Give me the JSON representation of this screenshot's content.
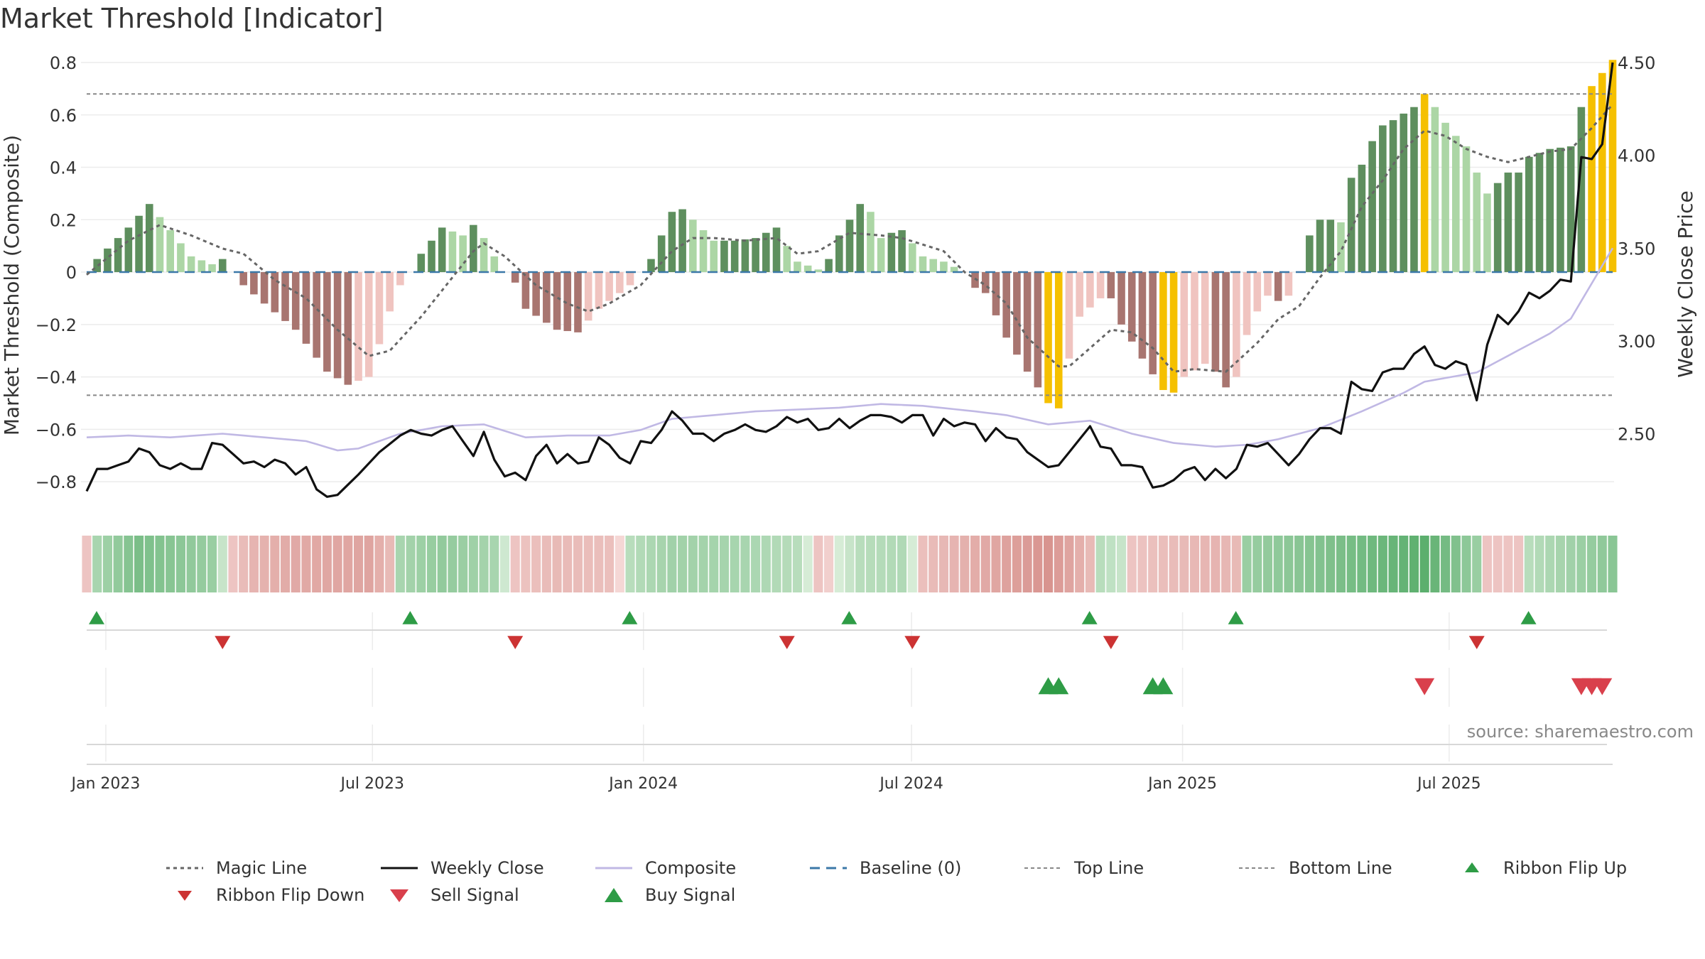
{
  "title": "Market Threshold [Indicator]",
  "source": "source: sharemaestro.com",
  "colors": {
    "pos_dark": "#5e8f5e",
    "pos_light": "#acd6a5",
    "neg_dark": "#a87570",
    "neg_light": "#f0c4c0",
    "extreme": "#f5c000",
    "close": "#111111",
    "composite": "#c0b8e4",
    "magic": "#666666",
    "baseline": "#3b78a8",
    "threshold": "#888888",
    "buy": "#2e9c46",
    "sell": "#d9404c"
  },
  "chart_data": {
    "type": "bar+line",
    "ylabel_left": "Market Threshold (Composite)",
    "ylabel_right": "Weekly Close Price",
    "ylim_left": [
      -0.9,
      0.8
    ],
    "yticks_left": [
      "0.8",
      "0.6",
      "0.4",
      "0.2",
      "0",
      "−0.2",
      "−0.4",
      "−0.6",
      "−0.8"
    ],
    "ytick_values_left": [
      0.8,
      0.6,
      0.4,
      0.2,
      0,
      -0.2,
      -0.4,
      -0.6,
      -0.8
    ],
    "ylim_right": [
      2.1,
      4.5
    ],
    "yticks_right": [
      "4.50",
      "4.00",
      "3.50",
      "3.00",
      "2.50"
    ],
    "ytick_values_right": [
      4.5,
      4.0,
      3.5,
      3.0,
      2.5
    ],
    "x_start": "2022-12-19",
    "x_end": "2025-10-20",
    "xticks": [
      "Jan 2023",
      "Jul 2023",
      "Jan 2024",
      "Jul 2024",
      "Jan 2025",
      "Jul 2025"
    ],
    "xtick_dates": [
      "2023-01-01",
      "2023-07-01",
      "2024-01-01",
      "2024-07-01",
      "2025-01-01",
      "2025-07-01"
    ],
    "top_line": 0.68,
    "bottom_line": -0.47,
    "bar_anchors": [
      [
        0,
        0.0
      ],
      [
        1,
        0.05
      ],
      [
        2,
        0.09
      ],
      [
        4,
        0.17
      ],
      [
        6,
        0.26
      ],
      [
        8,
        0.16
      ],
      [
        10,
        0.06
      ],
      [
        12,
        0.03
      ],
      [
        13,
        0.05
      ],
      [
        15,
        -0.05
      ],
      [
        17,
        -0.12
      ],
      [
        20,
        -0.22
      ],
      [
        23,
        -0.38
      ],
      [
        25,
        -0.43
      ],
      [
        27,
        -0.4
      ],
      [
        29,
        -0.15
      ],
      [
        30,
        -0.05
      ],
      [
        31,
        0.0
      ],
      [
        32,
        0.07
      ],
      [
        34,
        0.17
      ],
      [
        36,
        0.14
      ],
      [
        37,
        0.18
      ],
      [
        38,
        0.13
      ],
      [
        39,
        0.06
      ],
      [
        40,
        0.0
      ],
      [
        41,
        -0.04
      ],
      [
        42,
        -0.14
      ],
      [
        45,
        -0.22
      ],
      [
        47,
        -0.23
      ],
      [
        49,
        -0.14
      ],
      [
        52,
        -0.05
      ],
      [
        53,
        0.0
      ],
      [
        54,
        0.05
      ],
      [
        56,
        0.23
      ],
      [
        57,
        0.24
      ],
      [
        58,
        0.2
      ],
      [
        60,
        0.12
      ],
      [
        62,
        0.12
      ],
      [
        64,
        0.13
      ],
      [
        66,
        0.17
      ],
      [
        67,
        0.1
      ],
      [
        68,
        0.04
      ],
      [
        70,
        0.01
      ],
      [
        71,
        0.05
      ],
      [
        72,
        0.14
      ],
      [
        74,
        0.26
      ],
      [
        75,
        0.23
      ],
      [
        76,
        0.13
      ],
      [
        77,
        0.15
      ],
      [
        78,
        0.16
      ],
      [
        80,
        0.06
      ],
      [
        82,
        0.04
      ],
      [
        83,
        0.02
      ],
      [
        84,
        0.0
      ],
      [
        85,
        -0.06
      ],
      [
        86,
        -0.08
      ],
      [
        88,
        -0.25
      ],
      [
        90,
        -0.38
      ],
      [
        91,
        -0.44
      ],
      [
        92,
        -0.5
      ],
      [
        93,
        -0.52
      ],
      [
        94,
        -0.33
      ],
      [
        95,
        -0.17
      ],
      [
        97,
        -0.1
      ],
      [
        98,
        -0.1
      ],
      [
        99,
        -0.2
      ],
      [
        101,
        -0.33
      ],
      [
        103,
        -0.45
      ],
      [
        104,
        -0.46
      ],
      [
        105,
        -0.4
      ],
      [
        107,
        -0.35
      ],
      [
        108,
        -0.38
      ],
      [
        109,
        -0.44
      ],
      [
        110,
        -0.4
      ],
      [
        111,
        -0.24
      ],
      [
        112,
        -0.15
      ],
      [
        113,
        -0.09
      ],
      [
        114,
        -0.11
      ],
      [
        115,
        -0.09
      ],
      [
        116,
        0.0
      ],
      [
        117,
        0.14
      ],
      [
        118,
        0.2
      ],
      [
        119,
        0.2
      ],
      [
        120,
        0.19
      ],
      [
        121,
        0.36
      ],
      [
        122,
        0.41
      ],
      [
        123,
        0.5
      ],
      [
        124,
        0.56
      ],
      [
        125,
        0.58
      ],
      [
        127,
        0.63
      ],
      [
        128,
        0.68
      ],
      [
        129,
        0.63
      ],
      [
        130,
        0.57
      ],
      [
        131,
        0.52
      ],
      [
        132,
        0.48
      ],
      [
        133,
        0.38
      ],
      [
        134,
        0.3
      ],
      [
        135,
        0.34
      ],
      [
        136,
        0.38
      ],
      [
        137,
        0.38
      ],
      [
        138,
        0.44
      ],
      [
        140,
        0.47
      ],
      [
        142,
        0.48
      ],
      [
        143,
        0.63
      ],
      [
        144,
        0.71
      ],
      [
        145,
        0.76
      ],
      [
        146,
        0.81
      ]
    ],
    "extreme_bars": [
      92,
      93,
      103,
      104,
      128,
      144,
      145,
      146
    ],
    "close_anchors": [
      [
        0,
        2.19
      ],
      [
        1,
        2.31
      ],
      [
        2,
        2.31
      ],
      [
        4,
        2.35
      ],
      [
        5,
        2.42
      ],
      [
        6,
        2.4
      ],
      [
        7,
        2.33
      ],
      [
        8,
        2.31
      ],
      [
        9,
        2.34
      ],
      [
        10,
        2.31
      ],
      [
        11,
        2.31
      ],
      [
        12,
        2.45
      ],
      [
        13,
        2.44
      ],
      [
        15,
        2.34
      ],
      [
        16,
        2.35
      ],
      [
        17,
        2.32
      ],
      [
        18,
        2.36
      ],
      [
        19,
        2.34
      ],
      [
        20,
        2.28
      ],
      [
        21,
        2.32
      ],
      [
        22,
        2.2
      ],
      [
        23,
        2.16
      ],
      [
        24,
        2.17
      ],
      [
        26,
        2.28
      ],
      [
        28,
        2.4
      ],
      [
        30,
        2.49
      ],
      [
        31,
        2.52
      ],
      [
        32,
        2.5
      ],
      [
        33,
        2.49
      ],
      [
        34,
        2.52
      ],
      [
        35,
        2.54
      ],
      [
        36,
        2.46
      ],
      [
        37,
        2.38
      ],
      [
        38,
        2.51
      ],
      [
        39,
        2.36
      ],
      [
        40,
        2.27
      ],
      [
        41,
        2.29
      ],
      [
        42,
        2.25
      ],
      [
        43,
        2.38
      ],
      [
        44,
        2.44
      ],
      [
        45,
        2.34
      ],
      [
        46,
        2.39
      ],
      [
        47,
        2.34
      ],
      [
        48,
        2.35
      ],
      [
        49,
        2.48
      ],
      [
        50,
        2.44
      ],
      [
        51,
        2.37
      ],
      [
        52,
        2.34
      ],
      [
        53,
        2.46
      ],
      [
        54,
        2.45
      ],
      [
        55,
        2.52
      ],
      [
        56,
        2.62
      ],
      [
        57,
        2.57
      ],
      [
        58,
        2.5
      ],
      [
        59,
        2.5
      ],
      [
        60,
        2.46
      ],
      [
        61,
        2.5
      ],
      [
        62,
        2.52
      ],
      [
        63,
        2.55
      ],
      [
        64,
        2.52
      ],
      [
        65,
        2.51
      ],
      [
        66,
        2.54
      ],
      [
        67,
        2.59
      ],
      [
        68,
        2.56
      ],
      [
        69,
        2.58
      ],
      [
        70,
        2.52
      ],
      [
        71,
        2.53
      ],
      [
        72,
        2.58
      ],
      [
        73,
        2.53
      ],
      [
        74,
        2.57
      ],
      [
        75,
        2.6
      ],
      [
        76,
        2.6
      ],
      [
        77,
        2.59
      ],
      [
        78,
        2.56
      ],
      [
        79,
        2.6
      ],
      [
        80,
        2.6
      ],
      [
        81,
        2.49
      ],
      [
        82,
        2.58
      ],
      [
        83,
        2.54
      ],
      [
        84,
        2.56
      ],
      [
        85,
        2.55
      ],
      [
        86,
        2.46
      ],
      [
        87,
        2.53
      ],
      [
        88,
        2.48
      ],
      [
        89,
        2.47
      ],
      [
        90,
        2.4
      ],
      [
        91,
        2.36
      ],
      [
        92,
        2.32
      ],
      [
        93,
        2.33
      ],
      [
        94,
        2.4
      ],
      [
        95,
        2.47
      ],
      [
        96,
        2.54
      ],
      [
        97,
        2.43
      ],
      [
        98,
        2.42
      ],
      [
        99,
        2.33
      ],
      [
        100,
        2.33
      ],
      [
        101,
        2.32
      ],
      [
        102,
        2.21
      ],
      [
        103,
        2.22
      ],
      [
        104,
        2.25
      ],
      [
        105,
        2.3
      ],
      [
        106,
        2.32
      ],
      [
        107,
        2.25
      ],
      [
        108,
        2.31
      ],
      [
        109,
        2.26
      ],
      [
        110,
        2.31
      ],
      [
        111,
        2.44
      ],
      [
        112,
        2.43
      ],
      [
        113,
        2.45
      ],
      [
        114,
        2.39
      ],
      [
        115,
        2.33
      ],
      [
        116,
        2.39
      ],
      [
        117,
        2.47
      ],
      [
        118,
        2.53
      ],
      [
        119,
        2.53
      ],
      [
        120,
        2.5
      ],
      [
        121,
        2.78
      ],
      [
        122,
        2.74
      ],
      [
        123,
        2.73
      ],
      [
        124,
        2.83
      ],
      [
        125,
        2.85
      ],
      [
        126,
        2.85
      ],
      [
        127,
        2.93
      ],
      [
        128,
        2.97
      ],
      [
        129,
        2.87
      ],
      [
        130,
        2.85
      ],
      [
        131,
        2.89
      ],
      [
        132,
        2.87
      ],
      [
        133,
        2.68
      ],
      [
        134,
        2.98
      ],
      [
        135,
        3.14
      ],
      [
        136,
        3.09
      ],
      [
        137,
        3.16
      ],
      [
        138,
        3.26
      ],
      [
        139,
        3.23
      ],
      [
        140,
        3.27
      ],
      [
        141,
        3.33
      ],
      [
        142,
        3.32
      ],
      [
        143,
        3.99
      ],
      [
        144,
        3.98
      ],
      [
        145,
        4.06
      ],
      [
        146,
        4.5
      ]
    ],
    "composite_anchors": [
      [
        0,
        2.48
      ],
      [
        4,
        2.49
      ],
      [
        8,
        2.48
      ],
      [
        13,
        2.5
      ],
      [
        17,
        2.48
      ],
      [
        21,
        2.46
      ],
      [
        24,
        2.41
      ],
      [
        26,
        2.42
      ],
      [
        30,
        2.5
      ],
      [
        34,
        2.54
      ],
      [
        38,
        2.55
      ],
      [
        42,
        2.48
      ],
      [
        46,
        2.49
      ],
      [
        50,
        2.49
      ],
      [
        53,
        2.52
      ],
      [
        56,
        2.58
      ],
      [
        60,
        2.6
      ],
      [
        64,
        2.62
      ],
      [
        68,
        2.63
      ],
      [
        72,
        2.64
      ],
      [
        76,
        2.66
      ],
      [
        80,
        2.65
      ],
      [
        85,
        2.62
      ],
      [
        88,
        2.6
      ],
      [
        92,
        2.55
      ],
      [
        96,
        2.57
      ],
      [
        100,
        2.5
      ],
      [
        104,
        2.45
      ],
      [
        108,
        2.43
      ],
      [
        111,
        2.44
      ],
      [
        114,
        2.47
      ],
      [
        118,
        2.53
      ],
      [
        122,
        2.62
      ],
      [
        126,
        2.72
      ],
      [
        128,
        2.78
      ],
      [
        133,
        2.83
      ],
      [
        136,
        2.92
      ],
      [
        140,
        3.04
      ],
      [
        142,
        3.12
      ],
      [
        146,
        3.5
      ]
    ],
    "magic_anchors": [
      [
        0,
        -0.01
      ],
      [
        4,
        0.12
      ],
      [
        7,
        0.18
      ],
      [
        10,
        0.14
      ],
      [
        13,
        0.09
      ],
      [
        15,
        0.07
      ],
      [
        18,
        -0.03
      ],
      [
        21,
        -0.1
      ],
      [
        24,
        -0.22
      ],
      [
        27,
        -0.32
      ],
      [
        29,
        -0.3
      ],
      [
        32,
        -0.17
      ],
      [
        35,
        -0.02
      ],
      [
        37,
        0.08
      ],
      [
        38,
        0.11
      ],
      [
        40,
        0.06
      ],
      [
        43,
        -0.05
      ],
      [
        46,
        -0.12
      ],
      [
        48,
        -0.15
      ],
      [
        50,
        -0.12
      ],
      [
        53,
        -0.05
      ],
      [
        56,
        0.08
      ],
      [
        58,
        0.13
      ],
      [
        60,
        0.13
      ],
      [
        63,
        0.12
      ],
      [
        66,
        0.13
      ],
      [
        68,
        0.07
      ],
      [
        70,
        0.08
      ],
      [
        73,
        0.15
      ],
      [
        76,
        0.14
      ],
      [
        78,
        0.13
      ],
      [
        82,
        0.08
      ],
      [
        84,
        0.0
      ],
      [
        86,
        -0.05
      ],
      [
        88,
        -0.12
      ],
      [
        90,
        -0.25
      ],
      [
        93,
        -0.36
      ],
      [
        94,
        -0.36
      ],
      [
        96,
        -0.29
      ],
      [
        98,
        -0.22
      ],
      [
        100,
        -0.23
      ],
      [
        102,
        -0.29
      ],
      [
        104,
        -0.38
      ],
      [
        106,
        -0.37
      ],
      [
        109,
        -0.38
      ],
      [
        112,
        -0.27
      ],
      [
        114,
        -0.18
      ],
      [
        116,
        -0.13
      ],
      [
        118,
        -0.02
      ],
      [
        120,
        0.08
      ],
      [
        122,
        0.25
      ],
      [
        124,
        0.35
      ],
      [
        126,
        0.47
      ],
      [
        128,
        0.54
      ],
      [
        130,
        0.52
      ],
      [
        132,
        0.47
      ],
      [
        134,
        0.44
      ],
      [
        136,
        0.42
      ],
      [
        138,
        0.44
      ],
      [
        140,
        0.46
      ],
      [
        142,
        0.47
      ],
      [
        144,
        0.55
      ],
      [
        146,
        0.64
      ]
    ],
    "ribbon_anchors": [
      [
        0,
        -0.2
      ],
      [
        1,
        0.3
      ],
      [
        5,
        0.6
      ],
      [
        12,
        0.4
      ],
      [
        14,
        -0.2
      ],
      [
        16,
        -0.35
      ],
      [
        20,
        -0.45
      ],
      [
        27,
        -0.5
      ],
      [
        29,
        -0.3
      ],
      [
        30,
        0.3
      ],
      [
        34,
        0.45
      ],
      [
        39,
        0.3
      ],
      [
        41,
        -0.2
      ],
      [
        45,
        -0.3
      ],
      [
        50,
        -0.25
      ],
      [
        52,
        0.2
      ],
      [
        56,
        0.35
      ],
      [
        63,
        0.3
      ],
      [
        68,
        0.2
      ],
      [
        70,
        -0.2
      ],
      [
        74,
        0.2
      ],
      [
        78,
        0.25
      ],
      [
        80,
        -0.25
      ],
      [
        86,
        -0.45
      ],
      [
        92,
        -0.65
      ],
      [
        94,
        -0.5
      ],
      [
        96,
        -0.3
      ],
      [
        97,
        0.2
      ],
      [
        99,
        0.1
      ],
      [
        100,
        -0.2
      ],
      [
        108,
        -0.35
      ],
      [
        110,
        -0.3
      ],
      [
        111,
        0.4
      ],
      [
        118,
        0.55
      ],
      [
        124,
        0.7
      ],
      [
        128,
        0.8
      ],
      [
        133,
        0.4
      ],
      [
        134,
        -0.2
      ],
      [
        137,
        -0.2
      ],
      [
        138,
        0.2
      ],
      [
        146,
        0.5
      ]
    ],
    "ribbon_flip_up": [
      0,
      30,
      51,
      72,
      95,
      109,
      137
    ],
    "ribbon_flip_down": [
      13,
      41,
      67,
      79,
      98,
      133
    ],
    "buy_signals": [
      92,
      93,
      102,
      103
    ],
    "sell_signals": [
      128,
      143,
      144,
      145
    ]
  },
  "legend": [
    {
      "key": "magic",
      "label": "Magic Line"
    },
    {
      "key": "close",
      "label": "Weekly Close"
    },
    {
      "key": "composite",
      "label": "Composite"
    },
    {
      "key": "baseline",
      "label": "Baseline (0)"
    },
    {
      "key": "top",
      "label": "Top Line"
    },
    {
      "key": "bottom",
      "label": "Bottom Line"
    },
    {
      "key": "flip_up",
      "label": "Ribbon Flip Up"
    },
    {
      "key": "flip_down",
      "label": "Ribbon Flip Down"
    },
    {
      "key": "sell",
      "label": "Sell Signal"
    },
    {
      "key": "buy",
      "label": "Buy Signal"
    }
  ]
}
